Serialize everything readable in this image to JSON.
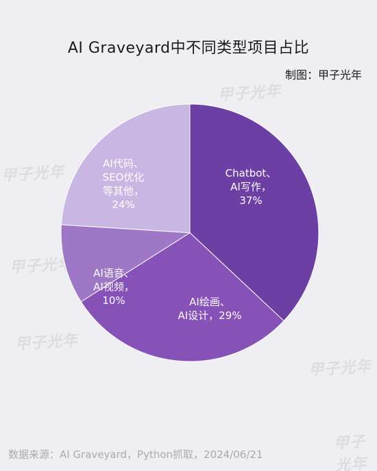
{
  "title": "AI Graveyard中不同类型项目占比",
  "credit": "制图：甲子光年",
  "source": "数据来源：AI Graveyard，Python抓取，2024/06/21",
  "watermark_text": "甲子光年",
  "chart_data": {
    "type": "pie",
    "title": "AI Graveyard中不同类型项目占比",
    "slices": [
      {
        "label_lines": [
          "Chatbot、",
          "AI写作，",
          "37%"
        ],
        "value": 37,
        "color": "#6b3fa4"
      },
      {
        "label_lines": [
          "AI绘画、",
          "AI设计，29%"
        ],
        "value": 29,
        "color": "#8752b8"
      },
      {
        "label_lines": [
          "AI语音、",
          "AI视频，",
          "10%"
        ],
        "value": 10,
        "color": "#9e78c6"
      },
      {
        "label_lines": [
          "AI代码、",
          "SEO优化",
          "等其他，",
          "24%"
        ],
        "value": 24,
        "color": "#cab6e2"
      }
    ]
  }
}
